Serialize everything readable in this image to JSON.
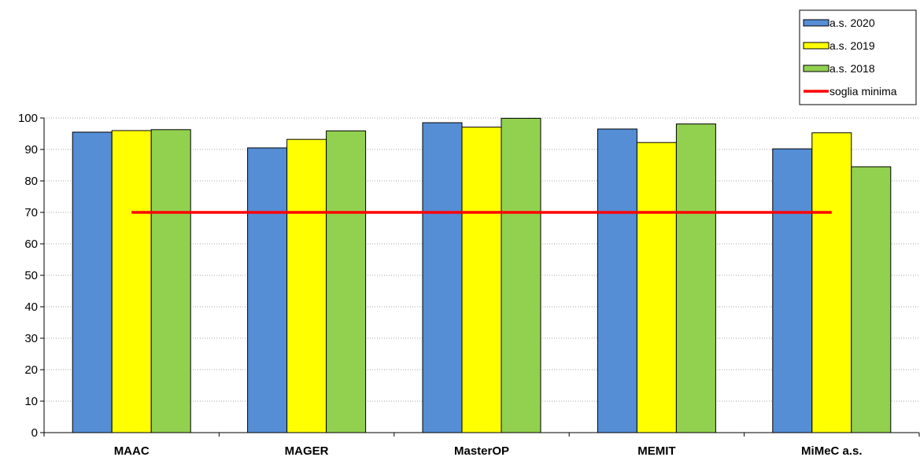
{
  "chart_data": {
    "type": "bar",
    "title": "",
    "xlabel": "",
    "ylabel": "",
    "categories": [
      "MAAC",
      "MAGER",
      "MasterOP",
      "MEMIT",
      "MiMeC a.s."
    ],
    "series": [
      {
        "name": "a.s. 2020",
        "color": "#558ED5",
        "values": [
          95.5,
          90.5,
          98.5,
          96.5,
          90.2
        ]
      },
      {
        "name": "a.s. 2019",
        "color": "#FFFF00",
        "values": [
          96.0,
          93.2,
          97.1,
          92.2,
          95.3
        ]
      },
      {
        "name": "a.s. 2018",
        "color": "#92D050",
        "values": [
          96.3,
          95.9,
          99.9,
          98.1,
          84.5
        ]
      }
    ],
    "threshold": {
      "name": "soglia minima",
      "value": 70,
      "color": "#FF0000"
    },
    "ylim": [
      0,
      100
    ],
    "yticks": [
      0,
      10,
      20,
      30,
      40,
      50,
      60,
      70,
      80,
      90,
      100
    ],
    "grid": true,
    "legend_position": "top-right"
  }
}
